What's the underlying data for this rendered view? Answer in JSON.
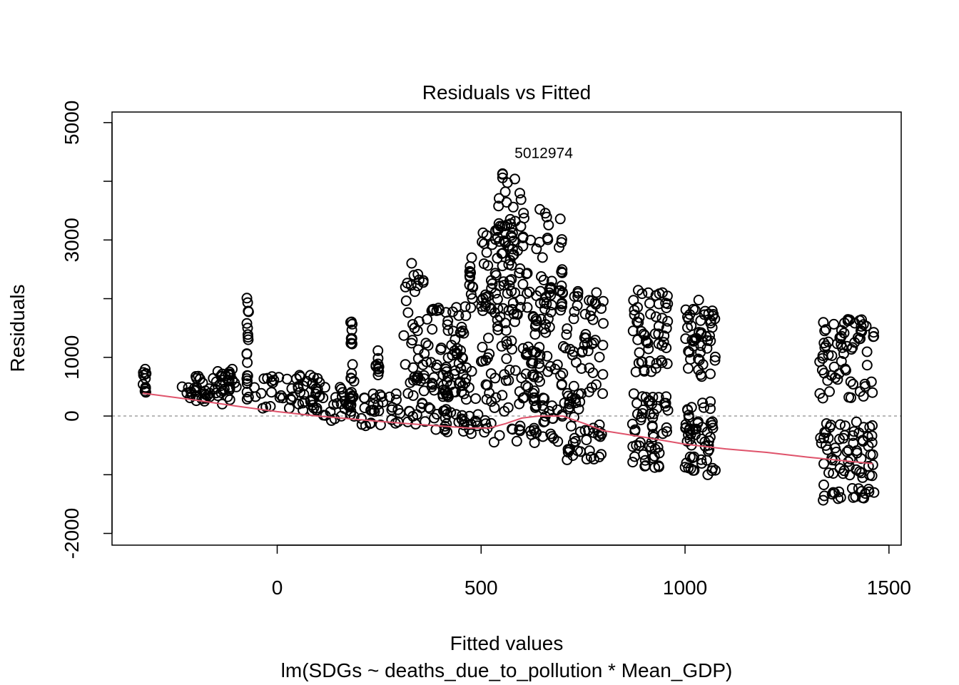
{
  "chart_data": {
    "type": "scatter",
    "title": "Residuals vs Fitted",
    "xlabel": "Fitted values",
    "subtitle": "lm(SDGs ~ deaths_due_to_pollution * Mean_GDP)",
    "ylabel": "Residuals",
    "xlim": [
      -405,
      1530
    ],
    "ylim": [
      -2200,
      5180
    ],
    "x_ticks": [
      0,
      500,
      1000,
      1500
    ],
    "x_tick_labels": [
      "0",
      "500",
      "1000",
      "1500"
    ],
    "y_ticks": [
      -2000,
      -1000,
      0,
      1000,
      2000,
      3000,
      4000,
      5000
    ],
    "y_tick_labels": [
      "-2000",
      "",
      "0",
      "1000",
      "",
      "3000",
      "",
      "5000"
    ],
    "reference_line": {
      "y": 0,
      "style": "dashed",
      "color": "#a0a0a0"
    },
    "point_color": "#000000",
    "smooth_color": "#df536b",
    "grid": false,
    "point_annotation": {
      "x": 568,
      "y": 4480,
      "label": "5012974"
    },
    "smooth_line": {
      "x": [
        -330,
        -200,
        -100,
        0,
        100,
        200,
        300,
        400,
        470,
        520,
        560,
        600,
        640,
        700,
        750,
        800,
        900,
        1000,
        1100,
        1200,
        1300,
        1400,
        1460
      ],
      "y": [
        390,
        270,
        170,
        75,
        0,
        -60,
        -120,
        -170,
        -205,
        -205,
        -130,
        -35,
        0,
        0,
        -120,
        -250,
        -360,
        -480,
        -560,
        -620,
        -700,
        -770,
        -810
      ]
    },
    "clusters": [
      {
        "x0": -330,
        "x1": -320,
        "y0": 310,
        "y1": 800,
        "n": 12
      },
      {
        "x0": -235,
        "x1": -150,
        "y0": 250,
        "y1": 700,
        "n": 30
      },
      {
        "x0": -150,
        "x1": -100,
        "y0": 200,
        "y1": 800,
        "n": 30
      },
      {
        "x0": -75,
        "x1": -70,
        "y0": 900,
        "y1": 2150,
        "n": 12
      },
      {
        "x0": -75,
        "x1": -70,
        "y0": 150,
        "y1": 700,
        "n": 8
      },
      {
        "x0": -60,
        "x1": 100,
        "y0": 80,
        "y1": 700,
        "n": 40
      },
      {
        "x0": 80,
        "x1": 110,
        "y0": 60,
        "y1": 700,
        "n": 16
      },
      {
        "x0": 110,
        "x1": 180,
        "y0": -80,
        "y1": 500,
        "n": 25
      },
      {
        "x0": 180,
        "x1": 185,
        "y0": 1200,
        "y1": 1670,
        "n": 10
      },
      {
        "x0": 180,
        "x1": 190,
        "y0": -120,
        "y1": 970,
        "n": 14
      },
      {
        "x0": 200,
        "x1": 300,
        "y0": -170,
        "y1": 400,
        "n": 30
      },
      {
        "x0": 240,
        "x1": 250,
        "y0": 650,
        "y1": 1150,
        "n": 10
      },
      {
        "x0": 310,
        "x1": 370,
        "y0": 600,
        "y1": 2650,
        "n": 35
      },
      {
        "x0": 300,
        "x1": 420,
        "y0": -250,
        "y1": 700,
        "n": 40
      },
      {
        "x0": 370,
        "x1": 470,
        "y0": 1700,
        "y1": 1880,
        "n": 12
      },
      {
        "x0": 370,
        "x1": 460,
        "y0": 800,
        "y1": 1650,
        "n": 30
      },
      {
        "x0": 410,
        "x1": 500,
        "y0": -300,
        "y1": 900,
        "n": 50
      },
      {
        "x0": 470,
        "x1": 480,
        "y0": 1800,
        "y1": 2800,
        "n": 14
      },
      {
        "x0": 500,
        "x1": 560,
        "y0": 1800,
        "y1": 3300,
        "n": 35
      },
      {
        "x0": 540,
        "x1": 600,
        "y0": 1600,
        "y1": 4200,
        "n": 50
      },
      {
        "x0": 500,
        "x1": 640,
        "y0": -450,
        "y1": 2200,
        "n": 90
      },
      {
        "x0": 600,
        "x1": 670,
        "y0": 1000,
        "y1": 3600,
        "n": 40
      },
      {
        "x0": 620,
        "x1": 700,
        "y0": -500,
        "y1": 900,
        "n": 40
      },
      {
        "x0": 690,
        "x1": 700,
        "y0": 1800,
        "y1": 3550,
        "n": 16
      },
      {
        "x0": 640,
        "x1": 680,
        "y0": 1500,
        "y1": 2400,
        "n": 14
      },
      {
        "x0": 700,
        "x1": 800,
        "y0": 700,
        "y1": 2250,
        "n": 45
      },
      {
        "x0": 700,
        "x1": 800,
        "y0": -750,
        "y1": 550,
        "n": 50
      },
      {
        "x0": 870,
        "x1": 960,
        "y0": 750,
        "y1": 2150,
        "n": 55
      },
      {
        "x0": 870,
        "x1": 960,
        "y0": -900,
        "y1": 400,
        "n": 55
      },
      {
        "x0": 1000,
        "x1": 1075,
        "y0": 650,
        "y1": 1980,
        "n": 50
      },
      {
        "x0": 1000,
        "x1": 1075,
        "y0": -1050,
        "y1": 300,
        "n": 55
      },
      {
        "x0": 1330,
        "x1": 1465,
        "y0": 300,
        "y1": 1650,
        "n": 70
      },
      {
        "x0": 1330,
        "x1": 1465,
        "y0": -1450,
        "y1": -100,
        "n": 80
      }
    ]
  }
}
